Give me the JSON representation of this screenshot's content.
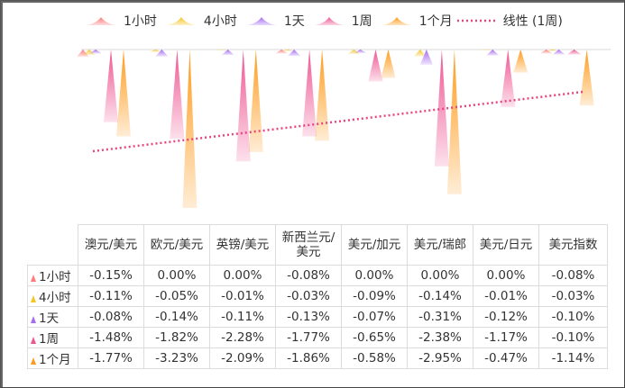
{
  "legend": [
    {
      "label": "1小时",
      "color": "#ff7c7c",
      "icon": "triangle-icon"
    },
    {
      "label": "4小时",
      "color": "#f5c525",
      "icon": "triangle-icon"
    },
    {
      "label": "1天",
      "color": "#a66cf0",
      "icon": "triangle-icon"
    },
    {
      "label": "1周",
      "color": "#ef5592",
      "icon": "triangle-icon"
    },
    {
      "label": "1个月",
      "color": "#ff9a1a",
      "icon": "triangle-icon"
    },
    {
      "label": "线性 (1周)",
      "color": "#e8457f",
      "icon": "dotted-line-icon"
    }
  ],
  "table": {
    "columns": [
      "澳元/美元",
      "欧元/美元",
      "英镑/美元",
      "新西兰元/美元",
      "美元/加元",
      "美元/瑞郎",
      "美元/日元",
      "美元指数"
    ],
    "column_display": [
      [
        "澳元/美元"
      ],
      [
        "欧元/美元"
      ],
      [
        "英镑/美元"
      ],
      [
        "新西兰元/",
        "美元"
      ],
      [
        "美元/加元"
      ],
      [
        "美元/瑞郎"
      ],
      [
        "美元/日元"
      ],
      [
        "美元指数"
      ]
    ],
    "rows": [
      {
        "label": "1小时",
        "color": "#ff7c7c",
        "values": [
          "-0.15%",
          "0.00%",
          "0.00%",
          "-0.08%",
          "0.00%",
          "0.00%",
          "0.00%",
          "-0.08%"
        ]
      },
      {
        "label": "4小时",
        "color": "#f5c525",
        "values": [
          "-0.11%",
          "-0.05%",
          "-0.01%",
          "-0.03%",
          "-0.09%",
          "-0.14%",
          "-0.01%",
          "-0.03%"
        ]
      },
      {
        "label": "1天",
        "color": "#a66cf0",
        "values": [
          "-0.08%",
          "-0.14%",
          "-0.11%",
          "-0.13%",
          "-0.07%",
          "-0.31%",
          "-0.12%",
          "-0.10%"
        ]
      },
      {
        "label": "1周",
        "color": "#ef5592",
        "values": [
          "-1.48%",
          "-1.82%",
          "-2.28%",
          "-1.77%",
          "-0.65%",
          "-2.38%",
          "-1.17%",
          "-0.10%"
        ]
      },
      {
        "label": "1个月",
        "color": "#ff9a1a",
        "values": [
          "-1.77%",
          "-3.23%",
          "-2.09%",
          "-1.86%",
          "-0.58%",
          "-2.95%",
          "-0.47%",
          "-1.14%"
        ]
      }
    ]
  },
  "chart_data": {
    "type": "bar",
    "subtype": "pointed-triangle-columns-with-data-table",
    "title": "",
    "xlabel": "",
    "ylabel": "",
    "ylim": [
      -3.5,
      0
    ],
    "grid": false,
    "legend_position": "top",
    "categories": [
      "澳元/美元",
      "欧元/美元",
      "英镑/美元",
      "新西兰元/美元",
      "美元/加元",
      "美元/瑞郎",
      "美元/日元",
      "美元指数"
    ],
    "series": [
      {
        "name": "1小时",
        "color": "#ff7c7c",
        "values": [
          -0.15,
          0.0,
          0.0,
          -0.08,
          0.0,
          0.0,
          0.0,
          -0.08
        ]
      },
      {
        "name": "4小时",
        "color": "#f5c525",
        "values": [
          -0.11,
          -0.05,
          -0.01,
          -0.03,
          -0.09,
          -0.14,
          -0.01,
          -0.03
        ]
      },
      {
        "name": "1天",
        "color": "#a66cf0",
        "values": [
          -0.08,
          -0.14,
          -0.11,
          -0.13,
          -0.07,
          -0.31,
          -0.12,
          -0.1
        ]
      },
      {
        "name": "1周",
        "color": "#ef5592",
        "values": [
          -1.48,
          -1.82,
          -2.28,
          -1.77,
          -0.65,
          -2.38,
          -1.17,
          -0.1
        ]
      },
      {
        "name": "1个月",
        "color": "#ff9a1a",
        "values": [
          -1.77,
          -3.23,
          -2.09,
          -1.86,
          -0.58,
          -2.95,
          -0.47,
          -1.14
        ]
      }
    ],
    "trendline": {
      "name": "线性 (1周)",
      "series": "1周",
      "type": "linear",
      "color": "#e8457f",
      "style": "dotted"
    }
  }
}
